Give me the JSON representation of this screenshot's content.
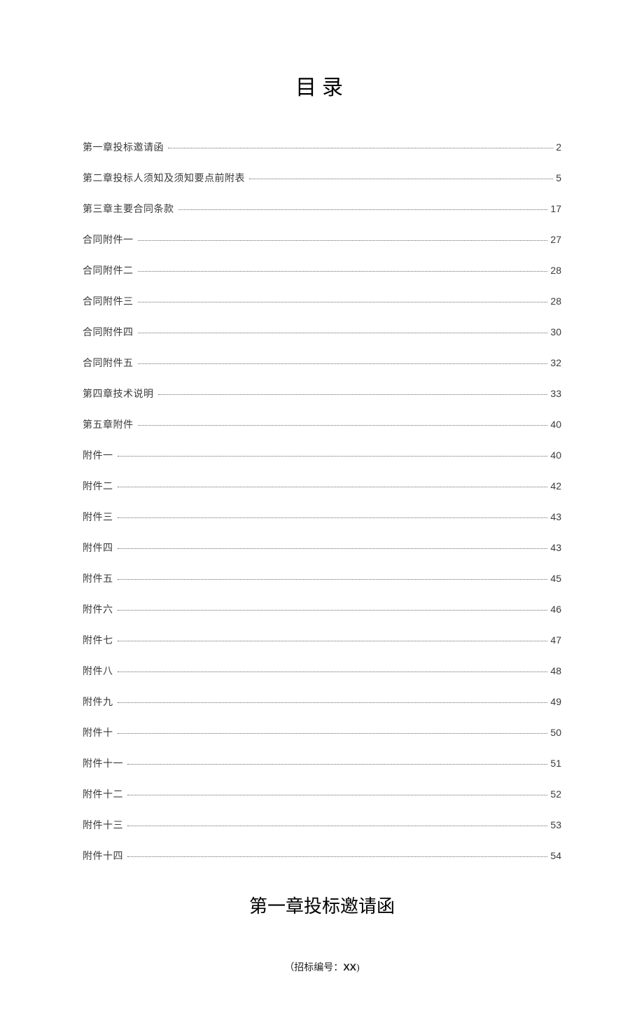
{
  "title": "目录",
  "toc": [
    {
      "label": "第一章投标邀请函",
      "page": "2"
    },
    {
      "label": "第二章投标人须知及须知要点前附表",
      "page": "5"
    },
    {
      "label": "第三章主要合同条款",
      "page": "17"
    },
    {
      "label": "合同附件一",
      "page": "27"
    },
    {
      "label": "合同附件二",
      "page": "28"
    },
    {
      "label": "合同附件三",
      "page": "28"
    },
    {
      "label": "合同附件四",
      "page": "30"
    },
    {
      "label": "合同附件五",
      "page": "32"
    },
    {
      "label": "第四章技术说明",
      "page": "33"
    },
    {
      "label": "第五章附件",
      "page": "40"
    },
    {
      "label": "附件一",
      "page": "40"
    },
    {
      "label": "附件二",
      "page": "42"
    },
    {
      "label": "附件三",
      "page": "43"
    },
    {
      "label": "附件四",
      "page": "43"
    },
    {
      "label": "附件五",
      "page": "45"
    },
    {
      "label": "附件六",
      "page": "46"
    },
    {
      "label": "附件七",
      "page": "47"
    },
    {
      "label": "附件八",
      "page": "48"
    },
    {
      "label": "附件九",
      "page": "49"
    },
    {
      "label": "附件十",
      "page": "50"
    },
    {
      "label": "附件十一",
      "page": "51"
    },
    {
      "label": "附件十二",
      "page": "52"
    },
    {
      "label": "附件十三",
      "page": "53"
    },
    {
      "label": "附件十四",
      "page": "54"
    }
  ],
  "chapterHeading": "第一章投标邀请函",
  "bidPrefix": "（招标编号：",
  "bidCode": "XX",
  "bidSuffix": ")",
  "styles": {
    "titleFontSize": 30,
    "tocFontSize": 14,
    "chapterFontSize": 26,
    "bodyColor": "#3a3a3a",
    "leaderColor": "#6a6a6a",
    "background": "#ffffff",
    "rowSpacing": 22
  }
}
